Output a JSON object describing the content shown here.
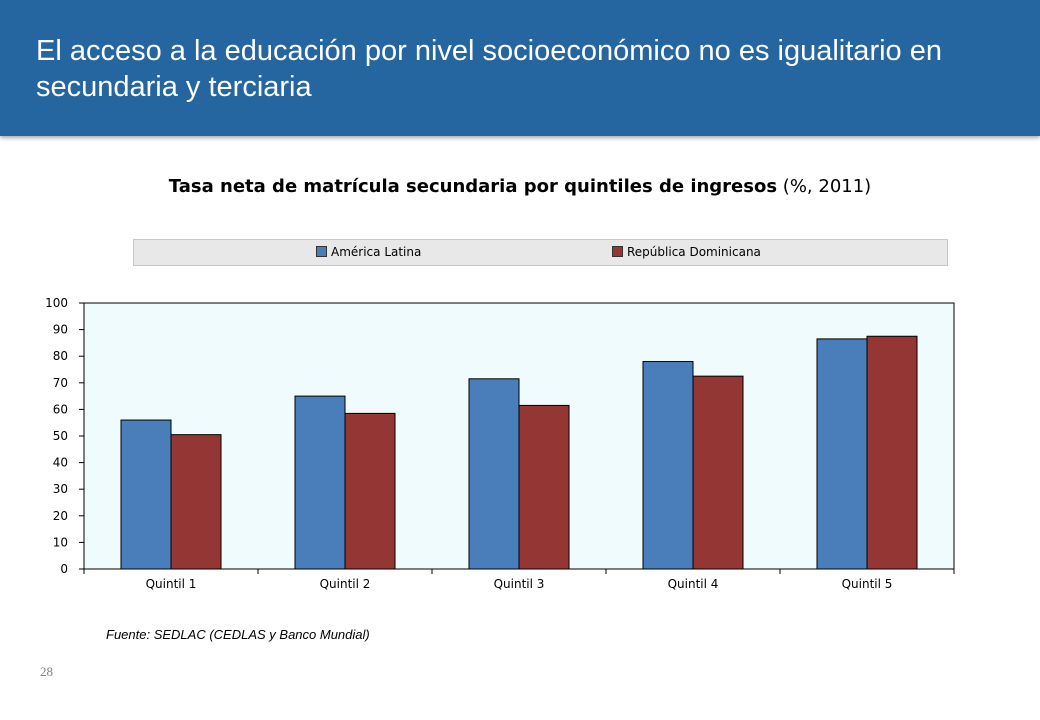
{
  "header": {
    "title": "El acceso a la educación por nivel socioeconómico no es igualitario en secundaria y terciaria"
  },
  "chart_title": {
    "bold": "Tasa neta de matrícula secundaria por quintiles de ingresos",
    "normal": " (%, 2011)"
  },
  "chart_data": {
    "type": "bar",
    "title": "Tasa neta de matrícula secundaria por quintiles de ingresos (%, 2011)",
    "categories": [
      "Quintil 1",
      "Quintil 2",
      "Quintil 3",
      "Quintil 4",
      "Quintil 5"
    ],
    "series": [
      {
        "name": "América Latina",
        "color": "#4a7ebb",
        "values": [
          56,
          65,
          71.5,
          78,
          86.5
        ]
      },
      {
        "name": "República Dominicana",
        "color": "#943634",
        "values": [
          50.5,
          58.5,
          61.5,
          72.5,
          87.5
        ]
      }
    ],
    "yticks": [
      "0",
      "10",
      "20",
      "30",
      "40",
      "50",
      "60",
      "70",
      "80",
      "90",
      "100"
    ],
    "ylim": [
      0,
      100
    ],
    "xlabel": "",
    "ylabel": "",
    "grid": false,
    "legend_position": "top",
    "plot_background": "#f0fbfd"
  },
  "footer": {
    "source": "Fuente: SEDLAC (CEDLAS y Banco Mundial)",
    "page_number": "28"
  }
}
